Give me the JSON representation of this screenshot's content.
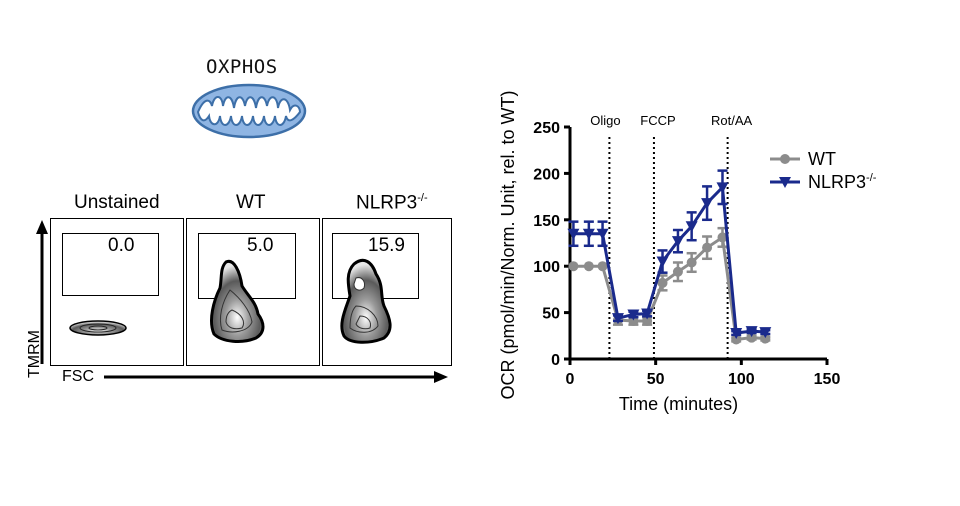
{
  "oxphos_panel": {
    "label": "OXPHOS"
  },
  "flow_panel": {
    "y_axis_label": "TMRM",
    "x_axis_label": "FSC",
    "samples": [
      {
        "title": "Unstained",
        "gate_value": "0.0"
      },
      {
        "title": "WT",
        "gate_value": "5.0"
      },
      {
        "title_base": "NLRP3",
        "title_sup": "-/-",
        "gate_value": "15.9"
      }
    ]
  },
  "colors": {
    "wt": "#8c8c8c",
    "nlrp3": "#1a2a8c",
    "mito_fill": "#8fb5e3",
    "mito_stroke": "#3d6fa8"
  },
  "chart_data": {
    "type": "line",
    "ylabel": "OCR (pmol/min/Norm. Unit, rel. to WT)",
    "xlabel": "Time (minutes)",
    "xlim": [
      0,
      150
    ],
    "ylim": [
      0,
      250
    ],
    "x_ticks": [
      0,
      50,
      100,
      150
    ],
    "y_ticks": [
      0,
      50,
      100,
      150,
      200,
      250
    ],
    "injections": [
      {
        "label": "Oligo",
        "x": 23
      },
      {
        "label": "FCCP",
        "x": 49
      },
      {
        "label": "Rot/AA",
        "x": 92
      }
    ],
    "legend": [
      {
        "series": "WT",
        "text": "WT"
      },
      {
        "series": "NLRP3",
        "text": "NLRP3",
        "sup": "-/-"
      }
    ],
    "series": [
      {
        "name": "WT",
        "marker": "circle",
        "x": [
          2,
          11,
          19,
          28,
          37,
          45,
          54,
          63,
          71,
          80,
          89,
          97,
          106,
          114
        ],
        "y": [
          100,
          100,
          100,
          42,
          41,
          41,
          82,
          94,
          104,
          120,
          131,
          21,
          23,
          22
        ],
        "err": [
          0,
          0,
          0,
          5,
          4,
          4,
          8,
          10,
          10,
          12,
          10,
          2,
          2,
          2
        ]
      },
      {
        "name": "NLRP3",
        "marker": "triangle-down",
        "x": [
          2,
          11,
          19,
          28,
          37,
          45,
          54,
          63,
          71,
          80,
          89,
          97,
          106,
          114
        ],
        "y": [
          135,
          135,
          135,
          44,
          48,
          49,
          105,
          127,
          143,
          168,
          185,
          28,
          30,
          29
        ],
        "err": [
          13,
          13,
          13,
          3,
          3,
          3,
          12,
          12,
          15,
          18,
          18,
          2,
          2,
          2
        ]
      }
    ]
  }
}
